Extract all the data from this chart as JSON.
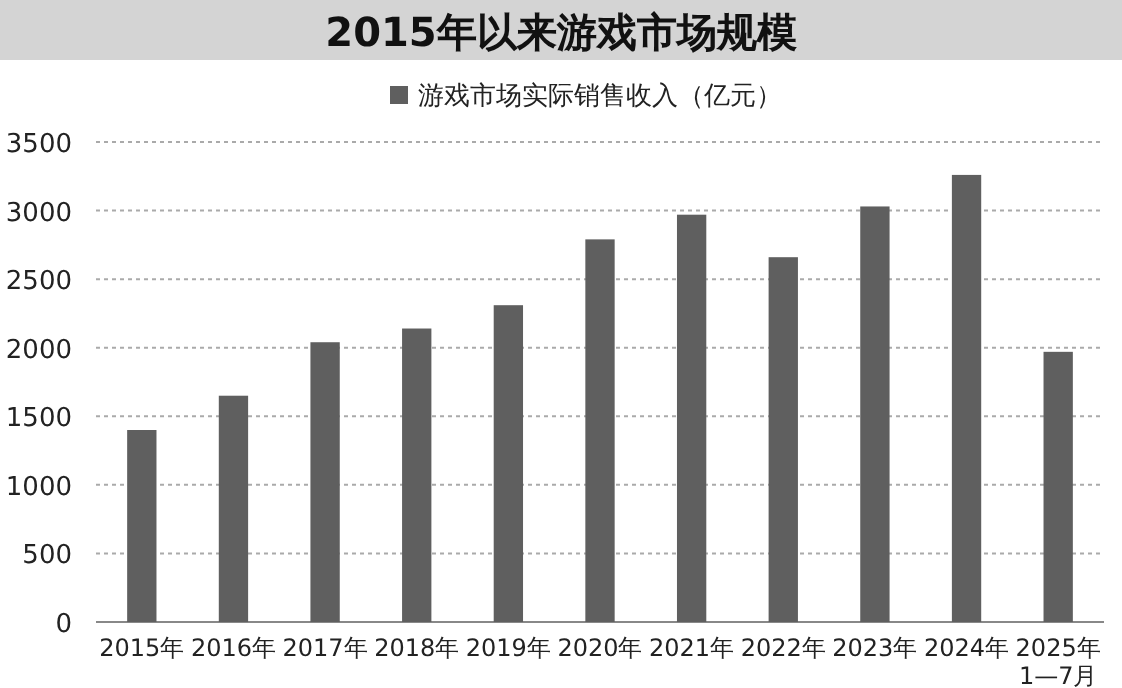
{
  "chart_data": {
    "type": "bar",
    "title": "2015年以来游戏市场规模",
    "categories": [
      "2015年",
      "2016年",
      "2017年",
      "2018年",
      "2019年",
      "2020年",
      "2021年",
      "2022年",
      "2023年",
      "2024年",
      "2025年 1—7月"
    ],
    "series": [
      {
        "name": "游戏市场实际销售收入（亿元）",
        "color": "#5f5f5f",
        "values": [
          1400,
          1650,
          2040,
          2140,
          2310,
          2790,
          2970,
          2660,
          3030,
          3260,
          1970
        ]
      }
    ],
    "ylim": [
      0,
      3500
    ],
    "yticks": [
      0,
      500,
      1000,
      1500,
      2000,
      2500,
      3000,
      3500
    ],
    "grid": "y",
    "legend": "top"
  }
}
